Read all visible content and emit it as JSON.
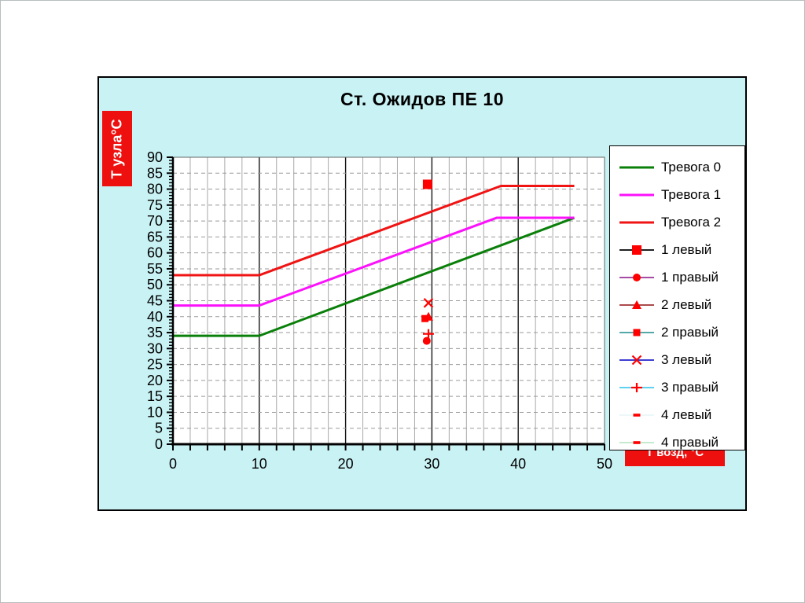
{
  "window": {
    "background": "#ffffff"
  },
  "chart": {
    "title": "Ст. Ожидов ПЕ 10",
    "frame_background": "#c9f2f4",
    "plot_background": "#ffffff",
    "label_box_color": "#ee0f0f",
    "label_text_color": "#ffffff"
  },
  "chart_data": {
    "type": "line",
    "title": "Ст. Ожидов ПЕ 10",
    "x_axis": {
      "label": "Т возд, °С",
      "min": 0,
      "max": 50,
      "major_tick": 10,
      "minor_tick": 2,
      "tick_labels": [
        "0",
        "10",
        "20",
        "30",
        "40",
        "50"
      ]
    },
    "y_axis": {
      "label": "Т узла°С",
      "min": 0,
      "max": 90,
      "major_tick": 5,
      "minor_tick": 1,
      "tick_labels": [
        "0",
        "5",
        "10",
        "15",
        "20",
        "25",
        "30",
        "35",
        "40",
        "45",
        "50",
        "55",
        "60",
        "65",
        "70",
        "75",
        "80",
        "85",
        "90"
      ]
    },
    "grid": {
      "vertical_minor": true,
      "horizontal_dashed": true
    },
    "legend_position": "right",
    "series": [
      {
        "name": "Тревога 0",
        "kind": "line",
        "color": "#0a800a",
        "points": [
          [
            0,
            34
          ],
          [
            10,
            34
          ],
          [
            46.5,
            71
          ]
        ]
      },
      {
        "name": "Тревога 1",
        "kind": "line",
        "color": "#fb12fb",
        "points": [
          [
            0,
            43.5
          ],
          [
            10,
            43.5
          ],
          [
            37.5,
            71
          ],
          [
            46.5,
            71
          ]
        ]
      },
      {
        "name": "Тревога 2",
        "kind": "line",
        "color": "#f01414",
        "points": [
          [
            0,
            53
          ],
          [
            10,
            53
          ],
          [
            38,
            81
          ],
          [
            46.5,
            81
          ]
        ]
      },
      {
        "name": "1 левый",
        "kind": "marker",
        "marker": "square",
        "line_color": "#000000",
        "marker_color": "#ff0000",
        "points": [
          [
            29.5,
            81.5
          ]
        ]
      },
      {
        "name": "1 правый",
        "kind": "marker",
        "marker": "circle",
        "line_color": "#993399",
        "marker_color": "#ff0000",
        "points": [
          [
            29.4,
            32.4
          ]
        ]
      },
      {
        "name": "2 левый",
        "kind": "marker",
        "marker": "triangle",
        "line_color": "#a03030",
        "marker_color": "#ff0000",
        "points": [
          [
            29.6,
            40
          ]
        ]
      },
      {
        "name": "2 правый",
        "kind": "marker",
        "marker": "square-small",
        "line_color": "#3c9c9c",
        "marker_color": "#ff0000",
        "points": [
          [
            29.2,
            39.4
          ]
        ]
      },
      {
        "name": "3 левый",
        "kind": "marker",
        "marker": "x",
        "line_color": "#2222cc",
        "marker_color": "#ff0000",
        "points": [
          [
            29.6,
            44.3
          ]
        ]
      },
      {
        "name": "3 правый",
        "kind": "marker",
        "marker": "plus",
        "line_color": "#44ccee",
        "marker_color": "#ff0000",
        "points": [
          [
            29.6,
            34.6
          ]
        ]
      },
      {
        "name": "4 левый",
        "kind": "marker",
        "marker": "dash",
        "line_color": "#e9f7f7",
        "marker_color": "#ff0000",
        "points": []
      },
      {
        "name": "4 правый",
        "kind": "marker",
        "marker": "dash",
        "line_color": "#bbe8c8",
        "marker_color": "#ff0000",
        "points": []
      }
    ]
  }
}
